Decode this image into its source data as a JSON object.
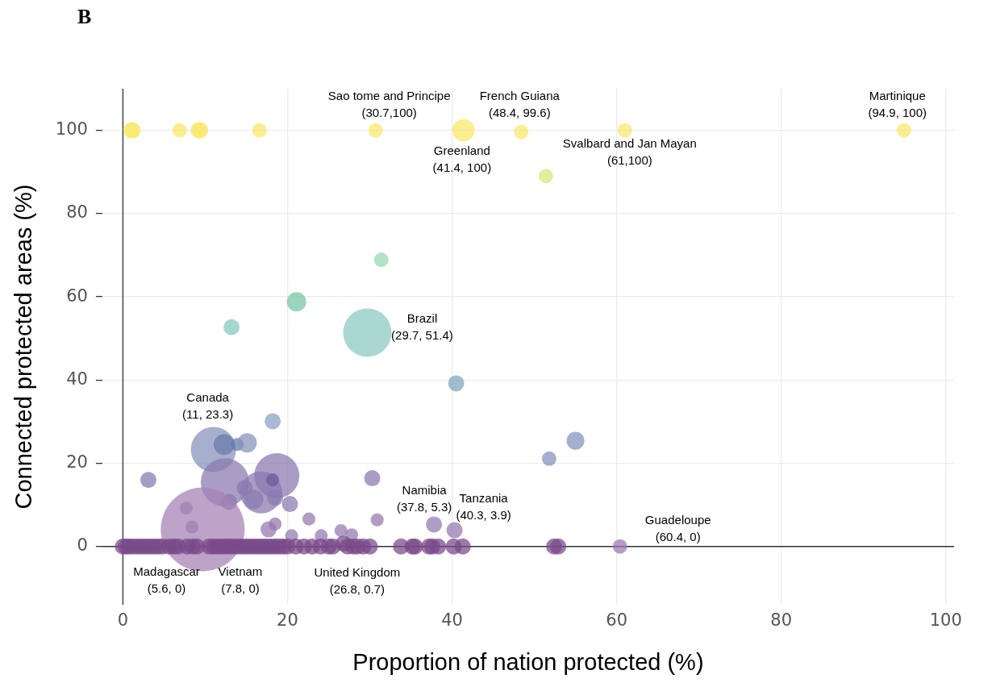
{
  "chart_data": {
    "type": "bubble",
    "title": "B",
    "xlabel": "Proportion of nation protected (%)",
    "ylabel": "Connected protected areas (%)",
    "xlim": [
      -2.5,
      101
    ],
    "ylim": [
      -14,
      110
    ],
    "xticks": [
      0,
      20,
      40,
      60,
      80,
      100
    ],
    "yticks": [
      0,
      20,
      40,
      60,
      80,
      100
    ],
    "grid": true,
    "legend": false,
    "marker": "circle",
    "x": [
      1,
      1.2,
      6.9,
      9.2,
      9.4,
      16.6,
      30.7,
      41.4,
      48.4,
      61,
      94.9,
      51.4,
      31.4,
      21.1,
      13.2,
      29.7,
      40.5,
      18.2,
      11,
      12.3,
      13.9,
      15.1,
      3.1,
      12.4,
      18.7,
      16.8,
      18.2,
      14.8,
      12.9,
      15.9,
      18.5,
      20.3,
      7.7,
      17.7,
      18.5,
      8.4,
      22.6,
      20.5,
      24.1,
      26.5,
      27.8,
      30.3,
      30.9,
      37.8,
      40.3,
      51.8,
      55,
      60.4,
      9.7,
      26.8,
      5.6,
      7.8,
      0,
      0.4,
      0.8,
      1.3,
      1.8,
      2.3,
      2.8,
      3.3,
      3.8,
      4.3,
      4.8,
      6.2,
      6.7,
      8.5,
      9,
      10.5,
      11,
      11.5,
      12,
      12.5,
      13,
      13.5,
      14,
      14.5,
      15,
      15.5,
      16,
      16.5,
      17,
      17.5,
      18,
      18.5,
      19,
      19.5,
      20,
      21,
      22,
      23,
      24,
      25,
      25.5,
      27.3,
      28,
      28.5,
      29.2,
      30,
      33.8,
      35.2,
      35.5,
      37.2,
      37.6,
      38.3,
      40.2,
      41.3,
      52.4,
      52.9
    ],
    "values": [
      100,
      100,
      100,
      100,
      100,
      100,
      100,
      100,
      99.6,
      100,
      100,
      89,
      68.9,
      58.8,
      52.7,
      51.4,
      39.2,
      30.1,
      23.3,
      24.5,
      24.5,
      24.9,
      16,
      15.4,
      17,
      13,
      16,
      14.1,
      10.7,
      11.3,
      11.7,
      10.2,
      9.2,
      4.1,
      5.4,
      4.7,
      6.6,
      2.6,
      2.6,
      3.8,
      2.8,
      16.4,
      6.4,
      5.3,
      3.9,
      21.1,
      25.4,
      0,
      4.1,
      0.7,
      0,
      0,
      0,
      0,
      0,
      0,
      0,
      0,
      0,
      0,
      0,
      0,
      0,
      0,
      0,
      0,
      0,
      0,
      0,
      0,
      0,
      0,
      0,
      0,
      0,
      0,
      0,
      0,
      0,
      0,
      0,
      0,
      0,
      0,
      0,
      0,
      0,
      0,
      0,
      0,
      0,
      0,
      0,
      0,
      0,
      0,
      0,
      0,
      0,
      0,
      0,
      0,
      0,
      0,
      0,
      0,
      0,
      0
    ],
    "sizes": [
      0.037,
      0.037,
      0.03,
      0.037,
      0.037,
      0.03,
      0.03,
      0.072,
      0.03,
      0.03,
      0.03,
      0.03,
      0.03,
      0.053,
      0.037,
      0.333,
      0.037,
      0.037,
      0.29,
      0.0625,
      0.024,
      0.053,
      0.037,
      0.333,
      0.29,
      0.25,
      0.024,
      0.037,
      0.037,
      0.053,
      0.037,
      0.037,
      0.024,
      0.037,
      0.024,
      0.024,
      0.024,
      0.024,
      0.024,
      0.024,
      0.024,
      0.037,
      0.024,
      0.037,
      0.037,
      0.03,
      0.045,
      0.03,
      1,
      0.037,
      0.037,
      0.037,
      0.037,
      0.037,
      0.037,
      0.037,
      0.037,
      0.037,
      0.037,
      0.037,
      0.037,
      0.037,
      0.037,
      0.037,
      0.037,
      0.037,
      0.037,
      0.037,
      0.037,
      0.037,
      0.037,
      0.037,
      0.037,
      0.037,
      0.037,
      0.037,
      0.037,
      0.037,
      0.037,
      0.037,
      0.037,
      0.037,
      0.037,
      0.037,
      0.037,
      0.037,
      0.037,
      0.037,
      0.037,
      0.037,
      0.037,
      0.037,
      0.037,
      0.037,
      0.037,
      0.037,
      0.037,
      0.037,
      0.037,
      0.037,
      0.037,
      0.037,
      0.037,
      0.037,
      0.037,
      0.037,
      0.037,
      0.037
    ],
    "colors": [
      "#f8e86a",
      "#f8e86a",
      "#f8e86a",
      "#f8e86a",
      "#f8e86a",
      "#f8e86a",
      "#f8e86a",
      "#f8e86a",
      "#f8e86a",
      "#f8e86a",
      "#f8e86a",
      "#d6e77a",
      "#98d8b0",
      "#75c6a6",
      "#86c7bf",
      "#8cc9c3",
      "#7ea6bb",
      "#87a3c4",
      "#8592bb",
      "#6a7aaa",
      "#6a7aaa",
      "#8592bb",
      "#8a7ab0",
      "#8a7ab0",
      "#8a7ab0",
      "#8a7ab0",
      "#6a5a9a",
      "#8a7ab0",
      "#8a7ab0",
      "#8a7ab0",
      "#8a7ab0",
      "#8a7ab0",
      "#957aae",
      "#957aae",
      "#957aae",
      "#957aae",
      "#957aae",
      "#957aae",
      "#957aae",
      "#957aae",
      "#957aae",
      "#8a7ab0",
      "#957aae",
      "#957aae",
      "#957aae",
      "#8592bb",
      "#8592bb",
      "#9a78ae",
      "#a582b4",
      "#7a4a8a",
      "#7a4a8a",
      "#7a4a8a",
      "#7a4a8a",
      "#7a4a8a",
      "#7a4a8a",
      "#7a4a8a",
      "#7a4a8a",
      "#7a4a8a",
      "#7a4a8a",
      "#7a4a8a",
      "#7a4a8a",
      "#7a4a8a",
      "#7a4a8a",
      "#7a4a8a",
      "#7a4a8a",
      "#7a4a8a",
      "#7a4a8a",
      "#7a4a8a",
      "#7a4a8a",
      "#7a4a8a",
      "#7a4a8a",
      "#7a4a8a",
      "#7a4a8a",
      "#7a4a8a",
      "#7a4a8a",
      "#7a4a8a",
      "#7a4a8a",
      "#7a4a8a",
      "#7a4a8a",
      "#7a4a8a",
      "#7a4a8a",
      "#7a4a8a",
      "#7a4a8a",
      "#7a4a8a",
      "#7a4a8a",
      "#7a4a8a",
      "#7a4a8a",
      "#7a4a8a",
      "#7a4a8a",
      "#7a4a8a",
      "#7a4a8a",
      "#7a4a8a",
      "#7a4a8a",
      "#7a4a8a",
      "#7a4a8a",
      "#7a4a8a",
      "#7a4a8a",
      "#7a4a8a",
      "#7a4a8a",
      "#7a4a8a",
      "#7a4a8a",
      "#7a4a8a",
      "#7a4a8a",
      "#7a4a8a",
      "#7a4a8a",
      "#7a4a8a",
      "#7a4a8a",
      "#7a4a8a"
    ],
    "annotations": [
      {
        "text": "Sao tome and Principe\n(30.7,100)",
        "x": 30.7,
        "y": 100
      },
      {
        "text": "French Guiana\n(48.4, 99.6)",
        "x": 48.4,
        "y": 99.6
      },
      {
        "text": "Martinique\n(94.9, 100)",
        "x": 94.9,
        "y": 100
      },
      {
        "text": "Greenland\n(41.4, 100)",
        "x": 41.4,
        "y": 100
      },
      {
        "text": "Svalbard and Jan Mayan\n(61,100)",
        "x": 61,
        "y": 100
      },
      {
        "text": "Brazil\n(29.7, 51.4)",
        "x": 29.7,
        "y": 51.4
      },
      {
        "text": "Canada\n(11, 23.3)",
        "x": 11,
        "y": 23.3
      },
      {
        "text": "Namibia\n(37.8, 5.3)",
        "x": 37.8,
        "y": 5.3
      },
      {
        "text": "Tanzania\n(40.3, 3.9)",
        "x": 40.3,
        "y": 3.9
      },
      {
        "text": "Guadeloupe\n(60.4, 0)",
        "x": 60.4,
        "y": 0
      },
      {
        "text": "Madagascar\n(5.6, 0)",
        "x": 5.6,
        "y": 0
      },
      {
        "text": "Vietnam\n(7.8, 0)",
        "x": 7.8,
        "y": 0
      },
      {
        "text": "United Kingdom\n(26.8, 0.7)",
        "x": 26.8,
        "y": 0.7
      }
    ]
  }
}
